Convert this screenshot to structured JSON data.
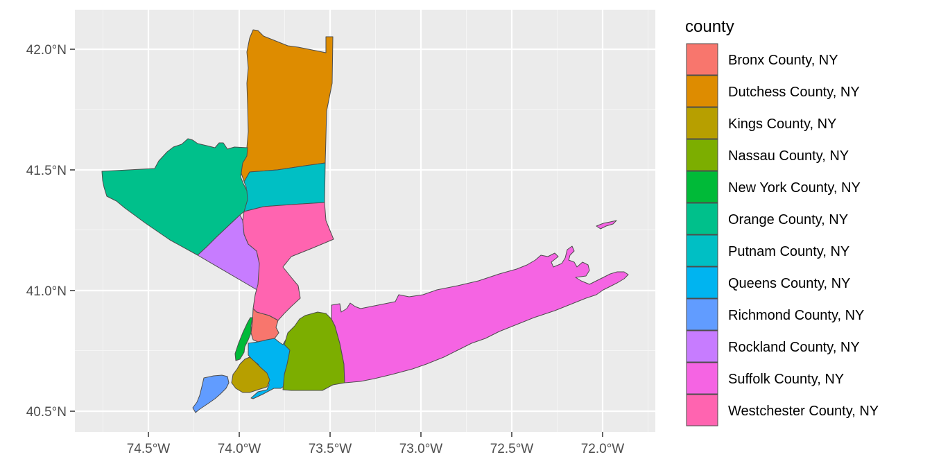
{
  "map": {
    "legend": {
      "title": "county",
      "entries": [
        {
          "id": "bronx",
          "label": "Bronx County, NY",
          "color": "#F8766D"
        },
        {
          "id": "dutchess",
          "label": "Dutchess County, NY",
          "color": "#DE8C00"
        },
        {
          "id": "kings",
          "label": "Kings County, NY",
          "color": "#B79F00"
        },
        {
          "id": "nassau",
          "label": "Nassau County, NY",
          "color": "#7CAE00"
        },
        {
          "id": "newyork",
          "label": "New York County, NY",
          "color": "#00BA38"
        },
        {
          "id": "orange",
          "label": "Orange County, NY",
          "color": "#00C08B"
        },
        {
          "id": "putnam",
          "label": "Putnam County, NY",
          "color": "#00BFC4"
        },
        {
          "id": "queens",
          "label": "Queens County, NY",
          "color": "#00B4F0"
        },
        {
          "id": "richmond",
          "label": "Richmond County, NY",
          "color": "#619CFF"
        },
        {
          "id": "rockland",
          "label": "Rockland County, NY",
          "color": "#C77CFF"
        },
        {
          "id": "suffolk",
          "label": "Suffolk County, NY",
          "color": "#F564E3"
        },
        {
          "id": "westchester",
          "label": "Westchester County, NY",
          "color": "#FF64B0"
        }
      ]
    },
    "x_axis": {
      "ticks": [
        {
          "value": -74.5,
          "label": "74.5°W"
        },
        {
          "value": -74.0,
          "label": "74.0°W"
        },
        {
          "value": -73.5,
          "label": "73.5°W"
        },
        {
          "value": -73.0,
          "label": "73.0°W"
        },
        {
          "value": -72.5,
          "label": "72.5°W"
        },
        {
          "value": -72.0,
          "label": "72.0°W"
        }
      ]
    },
    "y_axis": {
      "ticks": [
        {
          "value": 40.5,
          "label": "40.5°N"
        },
        {
          "value": 41.0,
          "label": "41.0°N"
        },
        {
          "value": 41.5,
          "label": "41.5°N"
        },
        {
          "value": 42.0,
          "label": "42.0°N"
        }
      ]
    },
    "panel_background": "#EBEBEB",
    "grid_color": "#FFFFFF",
    "border_color": "#4D4D4D"
  }
}
